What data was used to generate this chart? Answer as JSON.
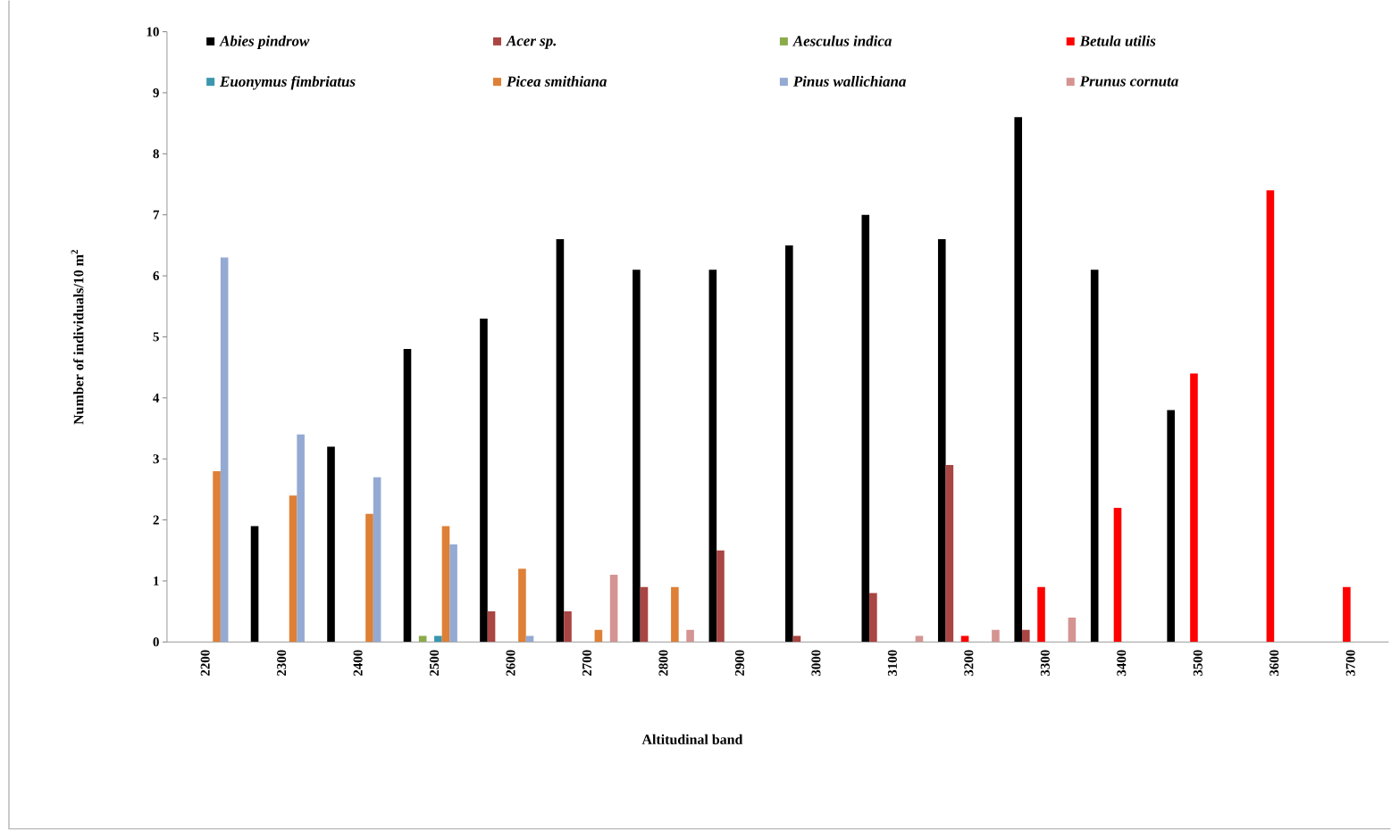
{
  "chart_data": {
    "type": "bar",
    "xlabel": "Altitudinal band",
    "ylabel": "Number of individuals/10 m$^{2}$",
    "categories": [
      "2200",
      "2300",
      "2400",
      "2500",
      "2600",
      "2700",
      "2800",
      "2900",
      "3000",
      "3100",
      "3200",
      "3300",
      "3400",
      "3500",
      "3600",
      "3700"
    ],
    "series": [
      {
        "name": "Abies pindrow",
        "color": "#000000",
        "values": [
          0,
          1.9,
          3.2,
          4.8,
          5.3,
          6.6,
          6.1,
          6.1,
          6.5,
          7.0,
          6.6,
          8.6,
          6.1,
          3.8,
          0,
          0
        ]
      },
      {
        "name": "Acer sp.",
        "color": "#a94542",
        "values": [
          0,
          0,
          0,
          0,
          0.5,
          0.5,
          0.9,
          1.5,
          0.1,
          0.8,
          2.9,
          0.2,
          0,
          0,
          0,
          0
        ]
      },
      {
        "name": "Aesculus indica",
        "color": "#8aab4a",
        "values": [
          0,
          0,
          0,
          0.1,
          0,
          0,
          0,
          0,
          0,
          0,
          0,
          0,
          0,
          0,
          0,
          0
        ]
      },
      {
        "name": "Betula utilis",
        "color": "#ff0000",
        "values": [
          0,
          0,
          0,
          0,
          0,
          0,
          0,
          0,
          0,
          0,
          0.1,
          0.9,
          2.2,
          4.4,
          7.4,
          0.9
        ]
      },
      {
        "name": "Euonymus fimbriatus",
        "color": "#3b96ae",
        "values": [
          0,
          0,
          0,
          0.1,
          0,
          0,
          0,
          0,
          0,
          0,
          0,
          0,
          0,
          0,
          0,
          0
        ]
      },
      {
        "name": "Picea smithiana",
        "color": "#de8036",
        "values": [
          2.8,
          2.4,
          2.1,
          1.9,
          1.2,
          0.2,
          0.9,
          0,
          0,
          0,
          0,
          0,
          0,
          0,
          0,
          0
        ]
      },
      {
        "name": "Pinus wallichiana",
        "color": "#94aad3",
        "values": [
          6.3,
          3.4,
          2.7,
          1.6,
          0.1,
          0,
          0,
          0,
          0,
          0,
          0,
          0,
          0,
          0,
          0,
          0
        ]
      },
      {
        "name": "Prunus cornuta",
        "color": "#d49492",
        "values": [
          0,
          0,
          0,
          0,
          0,
          1.1,
          0.2,
          0,
          0,
          0.1,
          0.2,
          0.4,
          0,
          0,
          0,
          0
        ]
      }
    ],
    "ylim": [
      0,
      10
    ],
    "yticks": [
      0,
      1,
      2,
      3,
      4,
      5,
      6,
      7,
      8,
      9,
      10
    ],
    "legend": "top",
    "grid": false
  }
}
